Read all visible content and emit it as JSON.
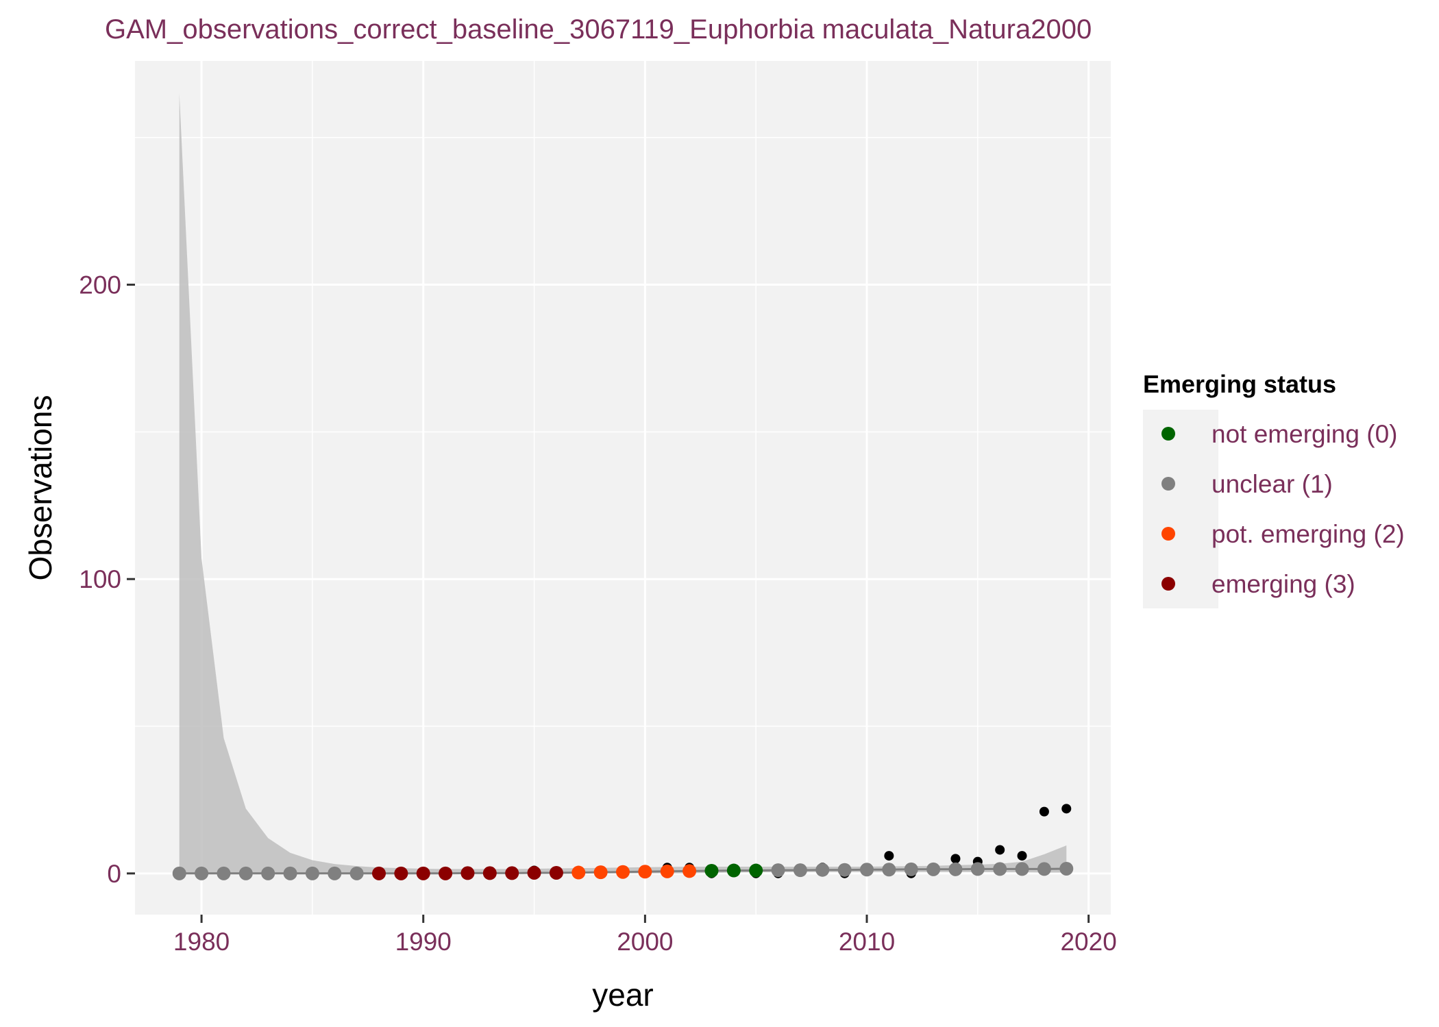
{
  "chart_data": {
    "type": "scatter",
    "title": "GAM_observations_correct_baseline_3067119_Euphorbia maculata_Natura2000",
    "xlabel": "year",
    "ylabel": "Observations",
    "xlim": [
      1977,
      2021
    ],
    "ylim": [
      -14,
      276
    ],
    "x_ticks": [
      1980,
      1990,
      2000,
      2010,
      2020
    ],
    "y_ticks": [
      0,
      100,
      200
    ],
    "grid": true,
    "legend": {
      "title": "Emerging status",
      "placement": "right",
      "entries": [
        {
          "key": "0",
          "label": "not emerging (0)",
          "color": "#006400"
        },
        {
          "key": "1",
          "label": "unclear (1)",
          "color": "#808080"
        },
        {
          "key": "2",
          "label": "pot. emerging (2)",
          "color": "#ff4500"
        },
        {
          "key": "3",
          "label": "emerging (3)",
          "color": "#8b0000"
        }
      ]
    },
    "observations": [
      {
        "x": 1979,
        "y": 0
      },
      {
        "x": 1980,
        "y": 0
      },
      {
        "x": 1981,
        "y": 0
      },
      {
        "x": 1982,
        "y": 0
      },
      {
        "x": 1983,
        "y": 0
      },
      {
        "x": 1984,
        "y": 0
      },
      {
        "x": 1985,
        "y": 0
      },
      {
        "x": 1986,
        "y": 0
      },
      {
        "x": 1987,
        "y": 0
      },
      {
        "x": 1988,
        "y": 0
      },
      {
        "x": 1989,
        "y": 0
      },
      {
        "x": 1990,
        "y": 0
      },
      {
        "x": 1991,
        "y": 0
      },
      {
        "x": 1992,
        "y": 0
      },
      {
        "x": 1993,
        "y": 0
      },
      {
        "x": 1994,
        "y": 0
      },
      {
        "x": 1995,
        "y": 1
      },
      {
        "x": 1996,
        "y": 0
      },
      {
        "x": 1997,
        "y": 0
      },
      {
        "x": 1998,
        "y": 0
      },
      {
        "x": 1999,
        "y": 0
      },
      {
        "x": 2000,
        "y": 1
      },
      {
        "x": 2001,
        "y": 2
      },
      {
        "x": 2002,
        "y": 2
      },
      {
        "x": 2003,
        "y": 0
      },
      {
        "x": 2004,
        "y": 1
      },
      {
        "x": 2005,
        "y": 0
      },
      {
        "x": 2006,
        "y": 0
      },
      {
        "x": 2007,
        "y": 1
      },
      {
        "x": 2008,
        "y": 2
      },
      {
        "x": 2009,
        "y": 0
      },
      {
        "x": 2010,
        "y": 1
      },
      {
        "x": 2011,
        "y": 6
      },
      {
        "x": 2012,
        "y": 0
      },
      {
        "x": 2013,
        "y": 1
      },
      {
        "x": 2014,
        "y": 5
      },
      {
        "x": 2015,
        "y": 4
      },
      {
        "x": 2016,
        "y": 8
      },
      {
        "x": 2017,
        "y": 6
      },
      {
        "x": 2018,
        "y": 21
      },
      {
        "x": 2019,
        "y": 22
      }
    ],
    "gam_fit": [
      {
        "x": 1979,
        "y": 0.0,
        "status": "1"
      },
      {
        "x": 1980,
        "y": 0.0,
        "status": "1"
      },
      {
        "x": 1981,
        "y": 0.0,
        "status": "1"
      },
      {
        "x": 1982,
        "y": 0.0,
        "status": "1"
      },
      {
        "x": 1983,
        "y": 0.0,
        "status": "1"
      },
      {
        "x": 1984,
        "y": 0.0,
        "status": "1"
      },
      {
        "x": 1985,
        "y": 0.0,
        "status": "1"
      },
      {
        "x": 1986,
        "y": 0.0,
        "status": "1"
      },
      {
        "x": 1987,
        "y": 0.0,
        "status": "1"
      },
      {
        "x": 1988,
        "y": 0.0,
        "status": "3"
      },
      {
        "x": 1989,
        "y": 0.0,
        "status": "3"
      },
      {
        "x": 1990,
        "y": 0.0,
        "status": "3"
      },
      {
        "x": 1991,
        "y": 0.0,
        "status": "3"
      },
      {
        "x": 1992,
        "y": 0.1,
        "status": "3"
      },
      {
        "x": 1993,
        "y": 0.1,
        "status": "3"
      },
      {
        "x": 1994,
        "y": 0.1,
        "status": "3"
      },
      {
        "x": 1995,
        "y": 0.2,
        "status": "3"
      },
      {
        "x": 1996,
        "y": 0.2,
        "status": "3"
      },
      {
        "x": 1997,
        "y": 0.3,
        "status": "2"
      },
      {
        "x": 1998,
        "y": 0.4,
        "status": "2"
      },
      {
        "x": 1999,
        "y": 0.5,
        "status": "2"
      },
      {
        "x": 2000,
        "y": 0.6,
        "status": "2"
      },
      {
        "x": 2001,
        "y": 0.7,
        "status": "2"
      },
      {
        "x": 2002,
        "y": 0.8,
        "status": "2"
      },
      {
        "x": 2003,
        "y": 0.9,
        "status": "0"
      },
      {
        "x": 2004,
        "y": 1.0,
        "status": "0"
      },
      {
        "x": 2005,
        "y": 1.0,
        "status": "0"
      },
      {
        "x": 2006,
        "y": 1.1,
        "status": "1"
      },
      {
        "x": 2007,
        "y": 1.1,
        "status": "1"
      },
      {
        "x": 2008,
        "y": 1.2,
        "status": "1"
      },
      {
        "x": 2009,
        "y": 1.2,
        "status": "1"
      },
      {
        "x": 2010,
        "y": 1.3,
        "status": "1"
      },
      {
        "x": 2011,
        "y": 1.3,
        "status": "1"
      },
      {
        "x": 2012,
        "y": 1.4,
        "status": "1"
      },
      {
        "x": 2013,
        "y": 1.4,
        "status": "1"
      },
      {
        "x": 2014,
        "y": 1.4,
        "status": "1"
      },
      {
        "x": 2015,
        "y": 1.5,
        "status": "1"
      },
      {
        "x": 2016,
        "y": 1.5,
        "status": "1"
      },
      {
        "x": 2017,
        "y": 1.5,
        "status": "1"
      },
      {
        "x": 2018,
        "y": 1.5,
        "status": "1"
      },
      {
        "x": 2019,
        "y": 1.6,
        "status": "1"
      }
    ],
    "confidence_band": {
      "x": [
        1979,
        1980,
        1981,
        1982,
        1983,
        1984,
        1985,
        1986,
        1987,
        1988,
        1989,
        1990,
        1991,
        1992,
        1993,
        1994,
        1995,
        1996,
        1997,
        1998,
        1999,
        2000,
        2001,
        2002,
        2003,
        2004,
        2005,
        2006,
        2007,
        2008,
        2009,
        2010,
        2011,
        2012,
        2013,
        2014,
        2015,
        2016,
        2017,
        2018,
        2019
      ],
      "upper": [
        265,
        107,
        46,
        22,
        12,
        7,
        4.5,
        3.2,
        2.5,
        2.0,
        1.8,
        1.6,
        1.5,
        1.5,
        1.5,
        1.5,
        1.6,
        1.7,
        1.8,
        1.9,
        2.0,
        2.1,
        2.2,
        2.3,
        2.3,
        2.3,
        2.3,
        2.3,
        2.3,
        2.3,
        2.3,
        2.3,
        2.4,
        2.5,
        2.6,
        2.8,
        3.0,
        3.3,
        4.0,
        6.5,
        9.5
      ],
      "lower": [
        0,
        0,
        0,
        0,
        0,
        0,
        0,
        0,
        0,
        0,
        0,
        0,
        0,
        0,
        0,
        0,
        0,
        0,
        0,
        0,
        0,
        0,
        0,
        0,
        0.2,
        0.3,
        0.4,
        0.4,
        0.5,
        0.5,
        0.5,
        0.5,
        0.5,
        0.5,
        0.5,
        0.5,
        0.5,
        0.4,
        0.4,
        0.3,
        0.3
      ]
    }
  }
}
